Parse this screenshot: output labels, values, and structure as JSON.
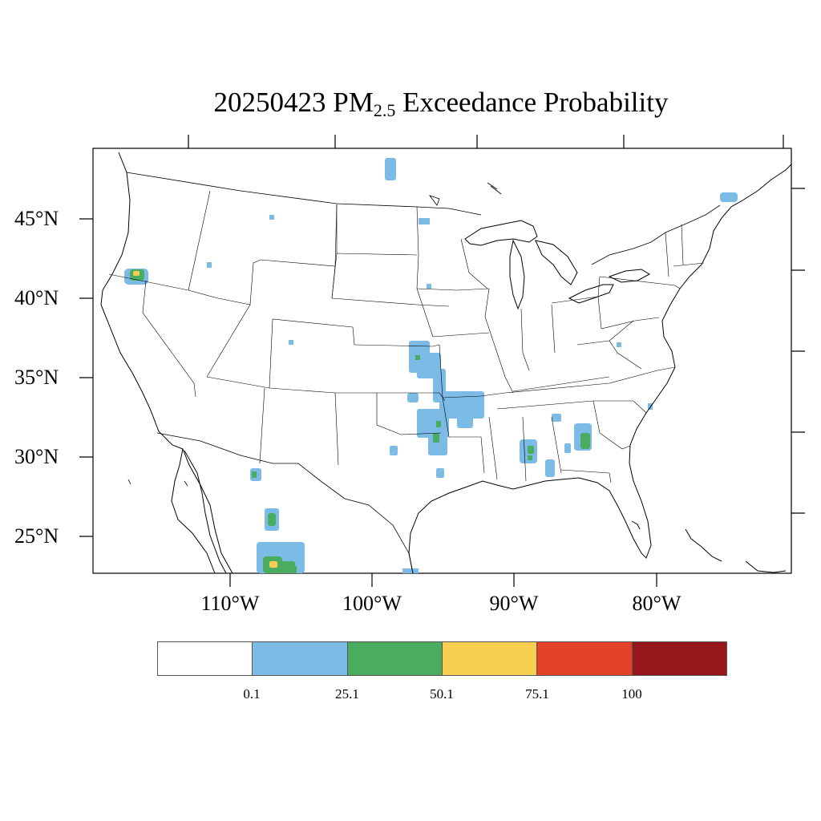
{
  "title": {
    "date": "20250423",
    "pollutant": "PM",
    "pollutant_sub": "2.5",
    "suffix": "Exceedance Probability"
  },
  "latitude_labels": [
    "45°N",
    "40°N",
    "35°N",
    "30°N",
    "25°N"
  ],
  "longitude_labels": [
    "110°W",
    "100°W",
    "90°W",
    "80°W"
  ],
  "legend": {
    "colors": [
      "#ffffff",
      "#7cbbe6",
      "#49ac5f",
      "#f9cf52",
      "#e24229",
      "#95161b"
    ],
    "labels": [
      "0.1",
      "25.1",
      "50.1",
      "75.1",
      "100"
    ]
  },
  "probability_classes": {
    "low": "#7cbbe6",
    "mid": "#49ac5f",
    "high": "#f9cf52"
  }
}
